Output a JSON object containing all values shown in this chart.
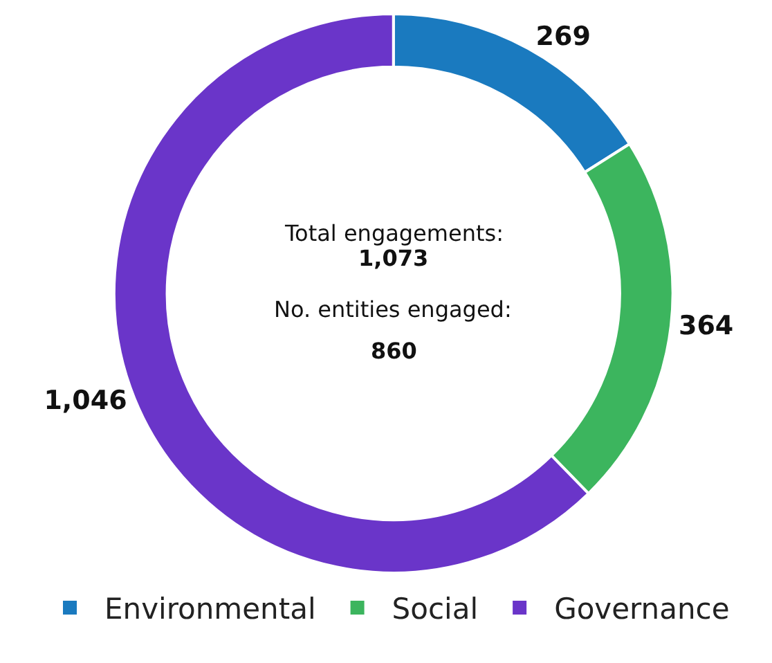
{
  "chart_data": {
    "type": "donut",
    "categories": [
      "Environmental",
      "Social",
      "Governance"
    ],
    "values": [
      269,
      364,
      1046
    ],
    "value_labels": [
      "269",
      "364",
      "1,046"
    ],
    "colors": [
      "#1a7abf",
      "#3cb55e",
      "#6a35c9"
    ],
    "annotations": [
      "Total engagements:",
      "1,073",
      "No. entities engaged:",
      "860"
    ],
    "legend": "bottom"
  }
}
